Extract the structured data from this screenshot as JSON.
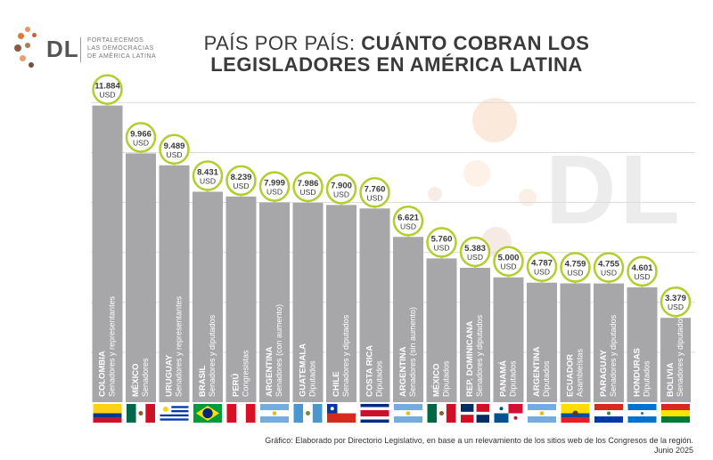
{
  "logo": {
    "mark": "DL",
    "tagline": [
      "FORTALECEMOS",
      "LAS DEMOCRACIAS",
      "DE AMÉRICA LATINA"
    ],
    "dot_colors": [
      "#e8935a",
      "#d97a3c",
      "#c0623a",
      "#8e5a3f",
      "#b07a52",
      "#e8a06a",
      "#7a4e37"
    ]
  },
  "title": {
    "line1_light": "PAÍS POR PAÍS: ",
    "line1_bold": "CUÁNTO COBRAN LOS",
    "line2": "LEGISLADORES EN AMÉRICA LATINA"
  },
  "watermark": "DL",
  "source": {
    "text": "Gráfico: Elaborado por Directorio Legislativo, en base a un relevamiento de los sitios web de los Congresos de la región.",
    "date": "Junio 2025"
  },
  "colors": {
    "bar": "#a7a7a9",
    "callout_border": "#b5cc2e",
    "callout_fill": "#ffffff",
    "grid": "#dcdcdc",
    "text_dark": "#3a3a3a"
  },
  "chart_data": {
    "type": "bar",
    "title": "PAÍS POR PAÍS: CUÁNTO COBRAN LOS LEGISLADORES EN AMÉRICA LATINA",
    "unit": "USD",
    "ylim": [
      0,
      12500
    ],
    "categories": [
      {
        "country": "COLOMBIA",
        "chamber": "Senadores y representantes",
        "value_label": "11.884",
        "flag": "colombia"
      },
      {
        "country": "MÉXICO",
        "chamber": "Senadores",
        "value_label": "9.966",
        "flag": "mexico"
      },
      {
        "country": "URUGUAY",
        "chamber": "Senadores y representantes",
        "value_label": "9.489",
        "flag": "uruguay"
      },
      {
        "country": "BRASIL",
        "chamber": "Senadores y diputados",
        "value_label": "8.431",
        "flag": "brasil"
      },
      {
        "country": "PERÚ",
        "chamber": "Congresistas",
        "value_label": "8.239",
        "flag": "peru"
      },
      {
        "country": "ARGENTINA",
        "chamber": "Senadores (con aumento)",
        "value_label": "7.999",
        "flag": "argentina"
      },
      {
        "country": "GUATEMALA",
        "chamber": "Diputados",
        "value_label": "7.986",
        "flag": "guatemala"
      },
      {
        "country": "CHILE",
        "chamber": "Senadores y diputados",
        "value_label": "7.900",
        "flag": "chile"
      },
      {
        "country": "COSTA RICA",
        "chamber": "Diputados",
        "value_label": "7.760",
        "flag": "costarica"
      },
      {
        "country": "ARGENTINA",
        "chamber": "Senadores (sin aumento)",
        "value_label": "6.621",
        "flag": "argentina"
      },
      {
        "country": "MÉXICO",
        "chamber": "Diputados",
        "value_label": "5.760",
        "flag": "mexico"
      },
      {
        "country": "REP. DOMINICANA",
        "chamber": "Senadores y diputados",
        "value_label": "5.383",
        "flag": "dominicana"
      },
      {
        "country": "PANAMÁ",
        "chamber": "Diputados",
        "value_label": "5.000",
        "flag": "panama"
      },
      {
        "country": "ARGENTINA",
        "chamber": "Diputados",
        "value_label": "4.787",
        "flag": "argentina"
      },
      {
        "country": "ECUADOR",
        "chamber": "Asambleístas",
        "value_label": "4.759",
        "flag": "ecuador"
      },
      {
        "country": "PARAGUAY",
        "chamber": "Senadores y diputados",
        "value_label": "4.755",
        "flag": "paraguay"
      },
      {
        "country": "HONDURAS",
        "chamber": "Diputados",
        "value_label": "4.601",
        "flag": "honduras"
      },
      {
        "country": "BOLIVIA",
        "chamber": "Senadores y diputados",
        "value_label": "3.379",
        "flag": "bolivia"
      }
    ],
    "values": [
      11884,
      9966,
      9489,
      8431,
      8239,
      7999,
      7986,
      7900,
      7760,
      6621,
      5760,
      5383,
      5000,
      4787,
      4759,
      4755,
      4601,
      3379
    ]
  }
}
